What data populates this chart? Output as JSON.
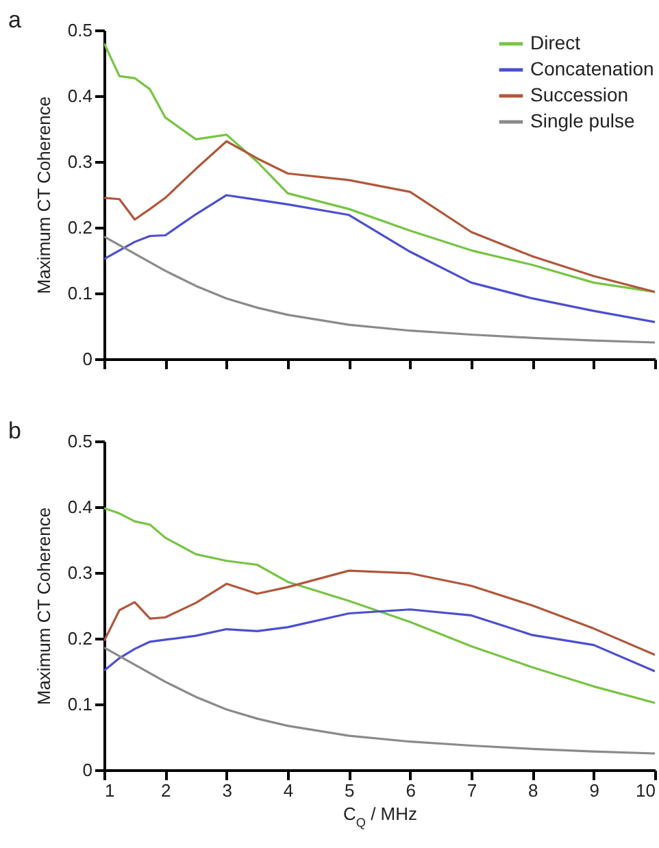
{
  "chart_data": [
    {
      "type": "line",
      "title": "a",
      "ylabel": "Maximum CT Coherence",
      "x": [
        1,
        1.25,
        1.5,
        1.75,
        2,
        2.5,
        3,
        3.5,
        4,
        5,
        6,
        7,
        8,
        9,
        10
      ],
      "xlim": [
        1,
        10
      ],
      "xticks": [
        1,
        2,
        3,
        4,
        5,
        6,
        7,
        8,
        9,
        10
      ],
      "ylim": [
        0,
        0.5
      ],
      "yticks": [
        0,
        0.1,
        0.2,
        0.3,
        0.4,
        0.5
      ],
      "tick_labels": "y",
      "legend": "top right",
      "grid": false,
      "line_style": "solid",
      "marker": "none",
      "series": [
        {
          "name": "Direct",
          "color": "#76c442",
          "values": [
            0.48,
            0.43,
            0.427,
            0.41,
            0.367,
            0.334,
            0.341,
            0.3,
            0.252,
            0.228,
            0.195,
            0.165,
            0.143,
            0.116,
            0.102
          ]
        },
        {
          "name": "Concatenation",
          "color": "#4b4fcf",
          "values": [
            0.152,
            0.165,
            0.178,
            0.187,
            0.188,
            0.22,
            0.249,
            0.242,
            0.235,
            0.219,
            0.163,
            0.116,
            0.092,
            0.073,
            0.056
          ]
        },
        {
          "name": "Succession",
          "color": "#b0573a",
          "values": [
            0.245,
            0.243,
            0.212,
            0.228,
            0.245,
            0.289,
            0.331,
            0.305,
            0.282,
            0.272,
            0.254,
            0.193,
            0.156,
            0.126,
            0.102
          ]
        },
        {
          "name": "Single pulse",
          "color": "#8a8a8a",
          "values": [
            0.186,
            0.173,
            0.16,
            0.147,
            0.134,
            0.111,
            0.092,
            0.078,
            0.067,
            0.052,
            0.043,
            0.037,
            0.032,
            0.028,
            0.025
          ]
        }
      ]
    },
    {
      "type": "line",
      "title": "b",
      "xlabel": "C$_{Q}$ / MHz",
      "ylabel": "Maximum CT Coherence",
      "x": [
        1,
        1.25,
        1.5,
        1.75,
        2,
        2.5,
        3,
        3.5,
        4,
        5,
        6,
        7,
        8,
        9,
        10
      ],
      "xlim": [
        1,
        10
      ],
      "xticks": [
        1,
        2,
        3,
        4,
        5,
        6,
        7,
        8,
        9,
        10
      ],
      "ylim": [
        0,
        0.5
      ],
      "yticks": [
        0,
        0.1,
        0.2,
        0.3,
        0.4,
        0.5
      ],
      "grid": false,
      "line_style": "solid",
      "marker": "none",
      "series": [
        {
          "color": "#76c442",
          "values": [
            0.398,
            0.39,
            0.378,
            0.373,
            0.353,
            0.328,
            0.318,
            0.312,
            0.286,
            0.257,
            0.225,
            0.188,
            0.156,
            0.127,
            0.102
          ]
        },
        {
          "color": "#4b4fcf",
          "values": [
            0.151,
            0.17,
            0.184,
            0.195,
            0.198,
            0.204,
            0.214,
            0.211,
            0.217,
            0.238,
            0.244,
            0.235,
            0.205,
            0.19,
            0.15
          ]
        },
        {
          "color": "#b0573a",
          "values": [
            0.196,
            0.243,
            0.255,
            0.23,
            0.232,
            0.254,
            0.283,
            0.268,
            0.278,
            0.303,
            0.299,
            0.28,
            0.25,
            0.215,
            0.175
          ]
        },
        {
          "color": "#8a8a8a",
          "values": [
            0.186,
            0.173,
            0.16,
            0.147,
            0.134,
            0.111,
            0.092,
            0.078,
            0.067,
            0.052,
            0.043,
            0.037,
            0.032,
            0.028,
            0.025
          ]
        }
      ]
    }
  ]
}
